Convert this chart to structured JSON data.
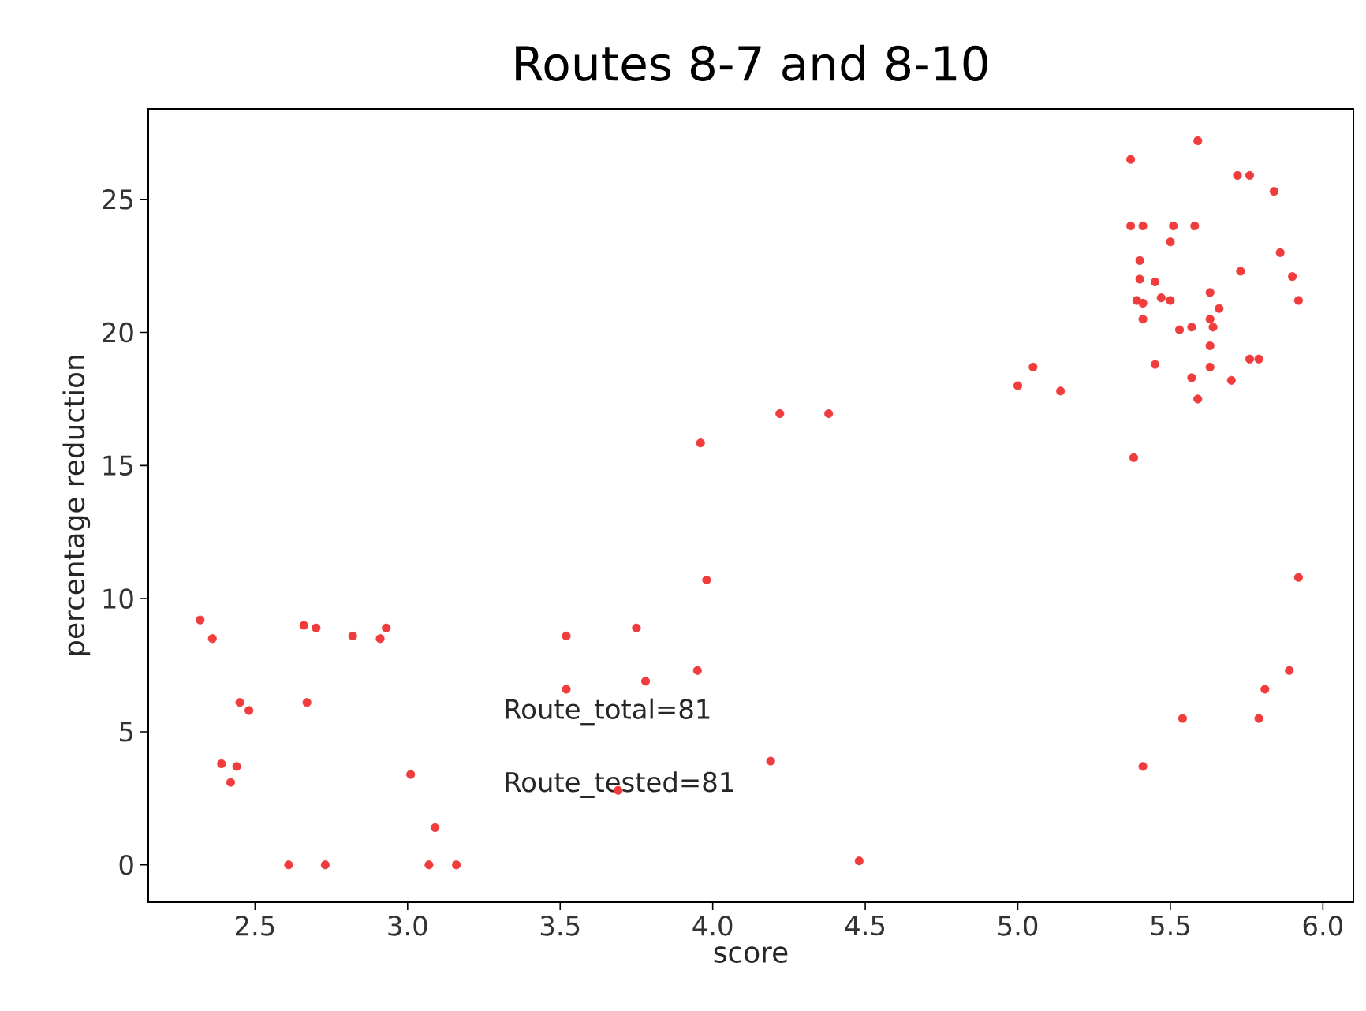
{
  "chart_data": {
    "type": "scatter",
    "title": "Routes 8-7 and 8-10",
    "xlabel": "score",
    "ylabel": "percentage reduction",
    "annotations": [
      "Route_total=81",
      "Route_tested=81"
    ],
    "xlim": [
      2.15,
      6.1
    ],
    "ylim": [
      -1.4,
      28.4
    ],
    "xticks": [
      2.5,
      {
        "value": 3,
        "label": "3.0"
      },
      3.5,
      {
        "value": 4,
        "label": "4.0"
      },
      4.5,
      {
        "value": 5,
        "label": "5.0"
      },
      5.5,
      {
        "value": 6,
        "label": "6.0"
      }
    ],
    "yticks": [
      0,
      5,
      10,
      15,
      20,
      25
    ],
    "grid": false,
    "marker": "circle",
    "series": [
      {
        "color": "#f03c3c",
        "x": [
          2.32,
          2.36,
          2.66,
          2.7,
          2.82,
          2.93,
          2.91,
          2.45,
          2.48,
          2.67,
          2.39,
          2.44,
          2.42,
          2.61,
          2.73,
          3.01,
          3.09,
          3.07,
          3.16,
          3.52,
          3.52,
          3.75,
          3.78,
          3.95,
          3.98,
          3.69,
          4.19,
          4.48,
          5.92,
          5.89,
          5.81,
          5.79,
          5.54,
          5.41,
          3.96,
          4.22,
          4.38,
          5.0,
          5.05,
          5.14,
          5.38,
          5.37,
          5.59,
          5.72,
          5.76,
          5.84,
          5.37,
          5.41,
          5.51,
          5.58,
          5.5,
          5.86,
          5.9,
          5.92,
          5.73,
          5.4,
          5.4,
          5.45,
          5.39,
          5.41,
          5.41,
          5.47,
          5.5,
          5.63,
          5.66,
          5.63,
          5.64,
          5.53,
          5.57,
          5.63,
          5.45,
          5.63,
          5.76,
          5.79,
          5.57,
          5.7,
          5.59
        ],
        "values": [
          9.2,
          8.5,
          9.0,
          8.9,
          8.6,
          8.9,
          8.5,
          6.1,
          5.8,
          6.1,
          3.8,
          3.7,
          3.1,
          0,
          0,
          3.4,
          1.4,
          0,
          0,
          8.6,
          6.6,
          8.9,
          6.9,
          7.3,
          10.7,
          2.8,
          3.9,
          0.15,
          10.8,
          7.3,
          6.6,
          5.5,
          5.5,
          3.7,
          15.85,
          16.95,
          16.95,
          18.0,
          18.7,
          17.8,
          15.3,
          26.5,
          27.2,
          25.9,
          25.9,
          25.3,
          24.0,
          24.0,
          24.0,
          24.0,
          23.4,
          23.0,
          22.1,
          21.2,
          22.3,
          22.7,
          22.0,
          21.9,
          21.2,
          21.1,
          20.5,
          21.3,
          21.2,
          21.5,
          20.9,
          20.5,
          20.2,
          20.1,
          20.2,
          19.5,
          18.8,
          18.7,
          19.0,
          19.0,
          18.3,
          18.2,
          17.5
        ]
      }
    ]
  }
}
